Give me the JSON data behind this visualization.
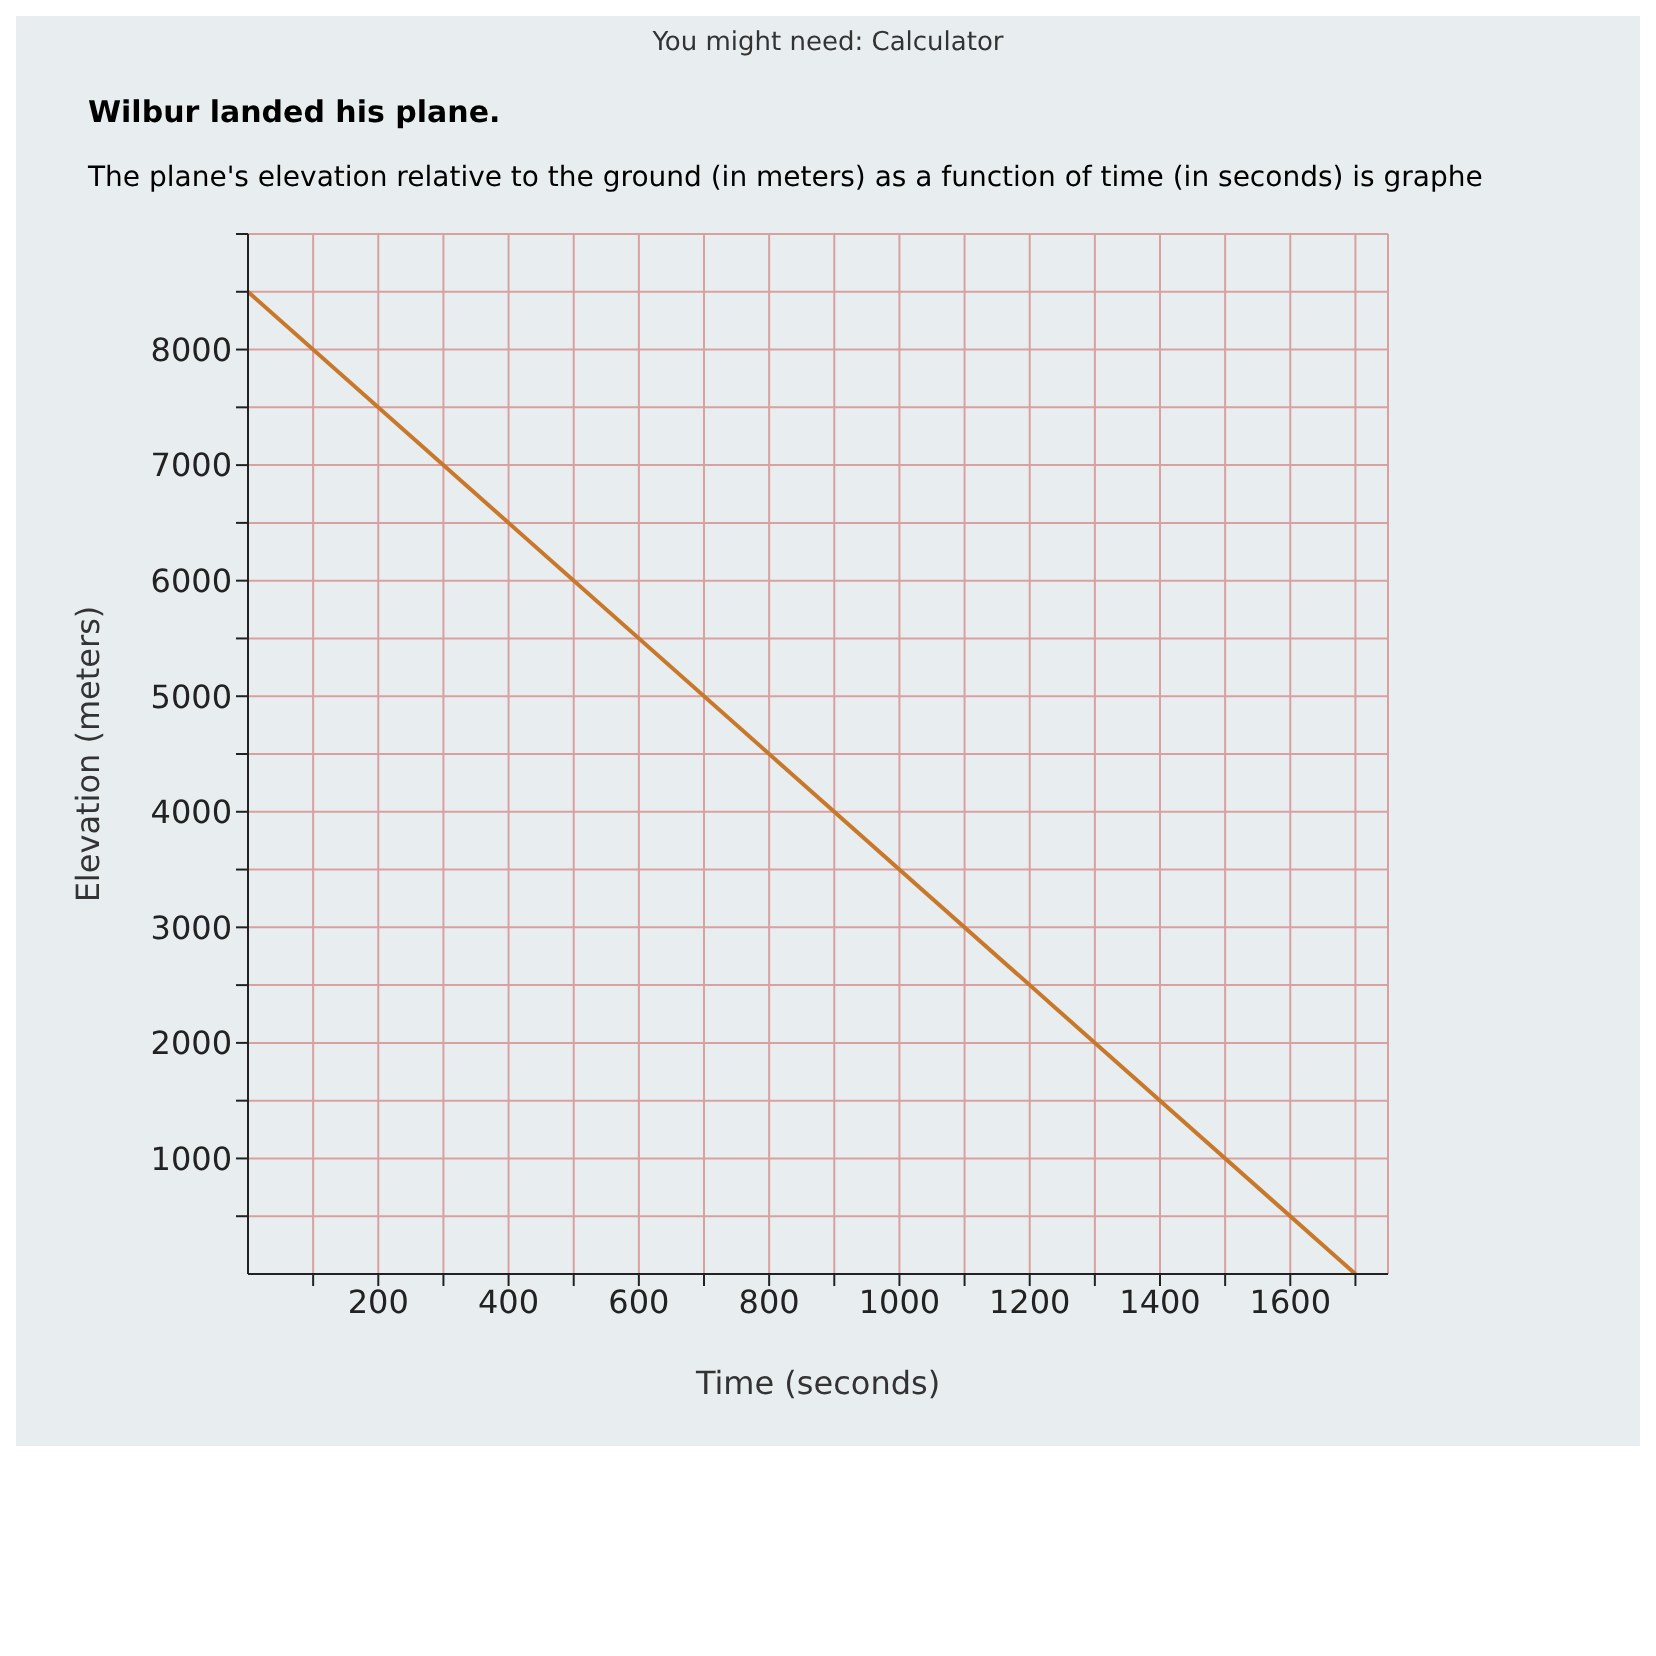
{
  "chart_data": {
    "type": "line",
    "title": "Wilbur landed his plane.",
    "subtitle": "The plane's elevation relative to the ground (in meters) as a function of time (in seconds) is graphe",
    "annotations": [
      "You might need: Calculator"
    ],
    "xlabel": "Time (seconds)",
    "ylabel": "Elevation (meters)",
    "x": [
      0,
      1700
    ],
    "series": [
      {
        "color": "#c8782a",
        "values": [
          8500,
          0
        ]
      }
    ],
    "xlim": [
      0,
      1750
    ],
    "ylim": [
      0,
      9000
    ],
    "xticks": [
      {
        "value": 100,
        "label": null
      },
      200,
      {
        "value": 300,
        "label": null
      },
      400,
      {
        "value": 500,
        "label": null
      },
      600,
      {
        "value": 700,
        "label": null
      },
      800,
      {
        "value": 900,
        "label": null
      },
      1000,
      {
        "value": 1100,
        "label": null
      },
      1200,
      {
        "value": 1300,
        "label": null
      },
      1400,
      {
        "value": 1500,
        "label": null
      },
      1600,
      {
        "value": 1700,
        "label": null
      }
    ],
    "yticks": [
      {
        "value": 500,
        "label": null
      },
      1000,
      {
        "value": 1500,
        "label": null
      },
      2000,
      {
        "value": 2500,
        "label": null
      },
      3000,
      {
        "value": 3500,
        "label": null
      },
      4000,
      {
        "value": 4500,
        "label": null
      },
      5000,
      {
        "value": 5500,
        "label": null
      },
      6000,
      {
        "value": 6500,
        "label": null
      },
      7000,
      {
        "value": 7500,
        "label": null
      },
      8000,
      {
        "value": 8500,
        "label": null
      },
      {
        "value": 9000,
        "label": null
      }
    ],
    "grid": true,
    "legend": false,
    "marker": "none",
    "line_style": "solid"
  }
}
